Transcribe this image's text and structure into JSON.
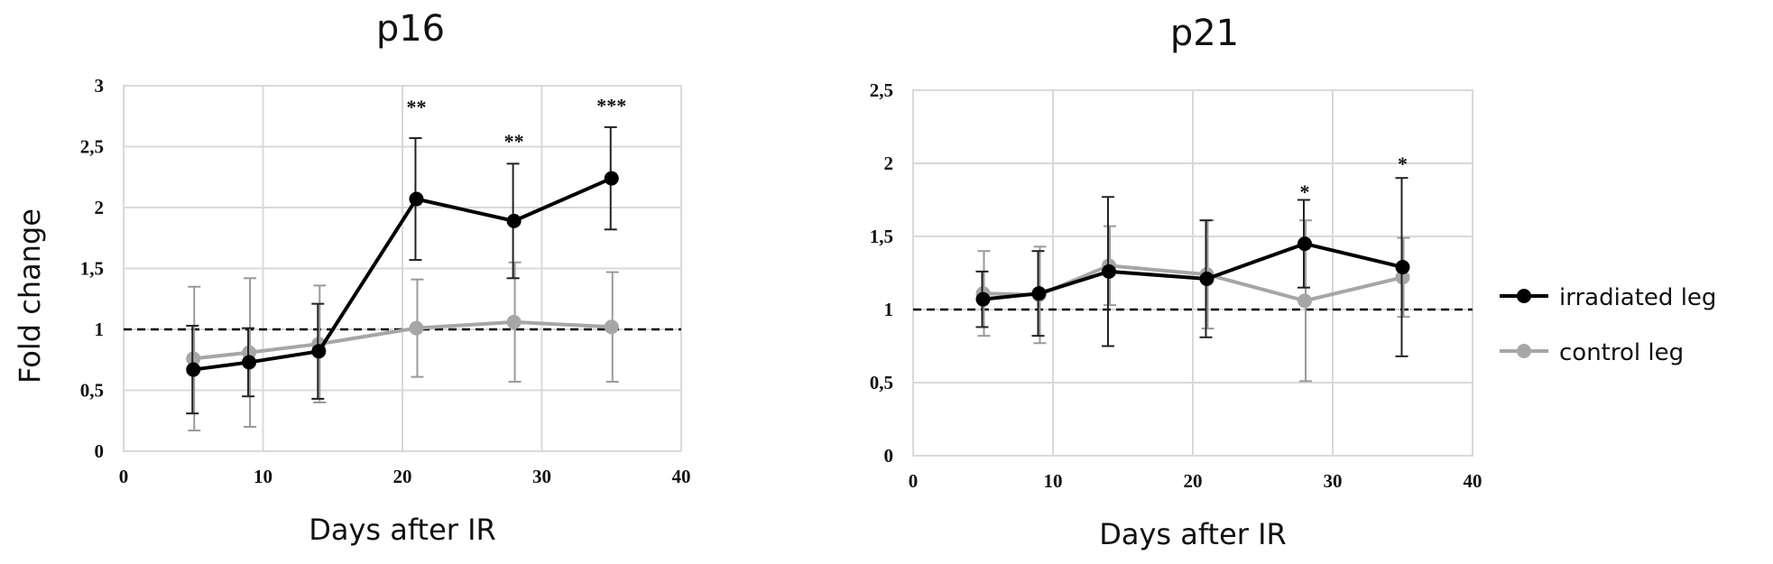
{
  "figure": {
    "ylabel": "Fold change",
    "legend": {
      "placement": "right",
      "entries": [
        {
          "label": "irradiated leg",
          "color": "#000000"
        },
        {
          "label": "control leg",
          "color": "#a6a6a6"
        }
      ]
    }
  },
  "chart_data": [
    {
      "type": "line",
      "title": "p16",
      "xlabel": "Days after IR",
      "ylabel": "Fold change",
      "xlim": [
        0,
        40
      ],
      "ylim": [
        0,
        3
      ],
      "xticks": [
        0,
        10,
        20,
        30,
        40
      ],
      "xtick_labels": [
        "0",
        "10",
        "20",
        "30",
        "40"
      ],
      "yticks": [
        0,
        0.5,
        1,
        1.5,
        2,
        2.5,
        3
      ],
      "ytick_labels": [
        "0",
        "0,5",
        "1",
        "1,5",
        "2",
        "2,5",
        "3"
      ],
      "grid": true,
      "reference_line": {
        "y": 1,
        "style": "dashed"
      },
      "x": [
        5,
        9,
        14,
        21,
        28,
        35
      ],
      "series": [
        {
          "name": "irradiated leg",
          "color": "#000000",
          "values": [
            0.67,
            0.73,
            0.82,
            2.07,
            1.89,
            2.24
          ],
          "err": [
            0.36,
            0.28,
            0.39,
            0.5,
            0.47,
            0.42
          ]
        },
        {
          "name": "control leg",
          "color": "#a6a6a6",
          "values": [
            0.76,
            0.81,
            0.88,
            1.01,
            1.06,
            1.02
          ],
          "err": [
            0.59,
            0.61,
            0.48,
            0.4,
            0.49,
            0.45
          ]
        }
      ],
      "annotations": [
        {
          "x": 21,
          "y": 2.83,
          "text": "**"
        },
        {
          "x": 28,
          "y": 2.55,
          "text": "**"
        },
        {
          "x": 35,
          "y": 2.84,
          "text": "***"
        }
      ]
    },
    {
      "type": "line",
      "title": "p21",
      "xlabel": "Days after IR",
      "ylabel": "",
      "xlim": [
        0,
        40
      ],
      "ylim": [
        0,
        2.5
      ],
      "xticks": [
        0,
        10,
        20,
        30,
        40
      ],
      "xtick_labels": [
        "0",
        "10",
        "20",
        "30",
        "40"
      ],
      "yticks": [
        0,
        0.5,
        1,
        1.5,
        2,
        2.5
      ],
      "ytick_labels": [
        "0",
        "0,5",
        "1",
        "1,5",
        "2",
        "2,5"
      ],
      "grid": true,
      "reference_line": {
        "y": 1,
        "style": "dashed"
      },
      "x": [
        5,
        9,
        14,
        21,
        28,
        35
      ],
      "series": [
        {
          "name": "irradiated leg",
          "color": "#000000",
          "values": [
            1.07,
            1.11,
            1.26,
            1.21,
            1.45,
            1.29
          ],
          "err": [
            0.19,
            0.29,
            0.51,
            0.4,
            0.3,
            0.61
          ]
        },
        {
          "name": "control leg",
          "color": "#a6a6a6",
          "values": [
            1.11,
            1.1,
            1.3,
            1.24,
            1.06,
            1.22
          ],
          "err": [
            0.29,
            0.33,
            0.27,
            0.37,
            0.55,
            0.27
          ]
        }
      ],
      "annotations": [
        {
          "x": 28,
          "y": 1.81,
          "text": "*"
        },
        {
          "x": 35,
          "y": 2.0,
          "text": "*"
        }
      ]
    }
  ]
}
